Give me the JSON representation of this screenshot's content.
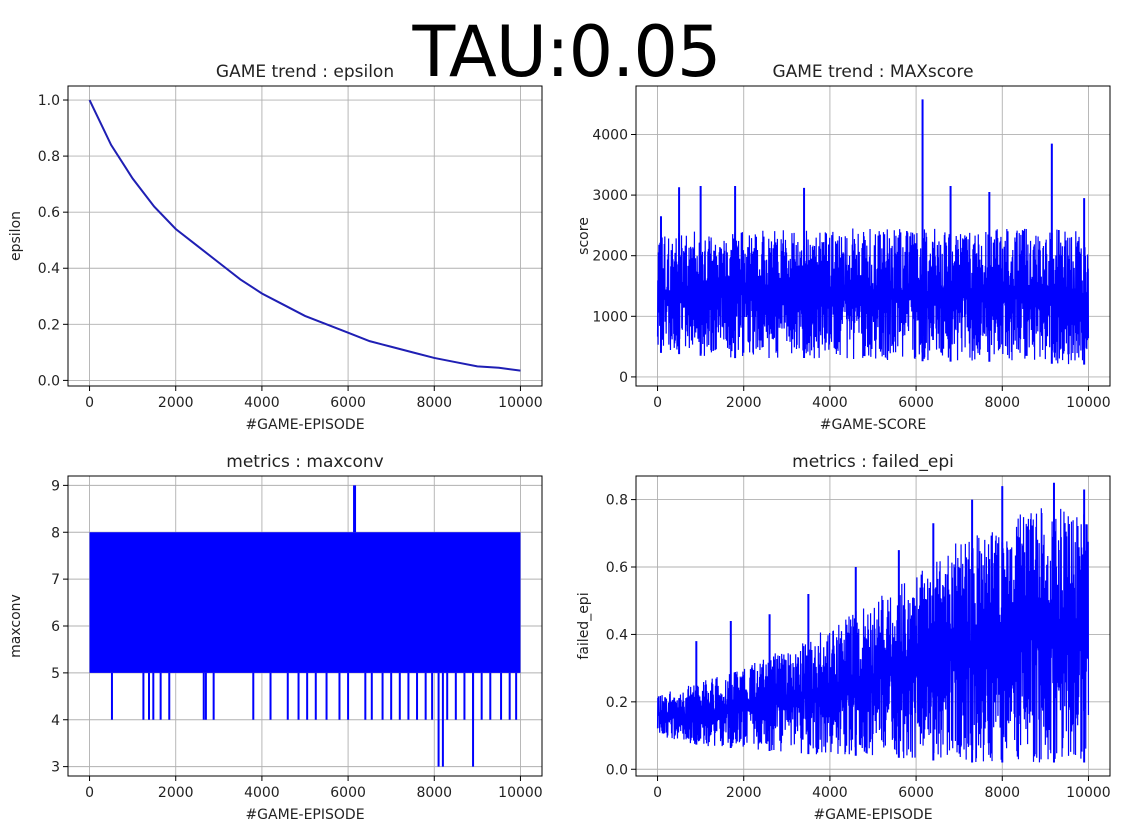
{
  "suptitle": "TAU:0.05",
  "colors": {
    "series": "#0000ff",
    "smooth": "#1f1fb4",
    "grid": "#b0b0b0",
    "axis": "#000000"
  },
  "chart_data": [
    {
      "id": "epsilon",
      "type": "line",
      "title": "GAME trend : epsilon",
      "xlabel": "#GAME-EPISODE",
      "ylabel": "epsilon",
      "xlim": [
        -500,
        10500
      ],
      "ylim": [
        -0.02,
        1.05
      ],
      "xticks": [
        0,
        2000,
        4000,
        6000,
        8000,
        10000
      ],
      "yticks": [
        0.0,
        0.2,
        0.4,
        0.6,
        0.8,
        1.0
      ],
      "ytick_labels": [
        "0.0",
        "0.2",
        "0.4",
        "0.6",
        "0.8",
        "1.0"
      ],
      "grid": true,
      "x": [
        0,
        500,
        1000,
        1500,
        2000,
        2500,
        3000,
        3500,
        4000,
        4500,
        5000,
        5500,
        6000,
        6500,
        7000,
        7500,
        8000,
        8500,
        9000,
        9500,
        10000
      ],
      "y": [
        1.0,
        0.84,
        0.72,
        0.62,
        0.54,
        0.48,
        0.42,
        0.36,
        0.31,
        0.27,
        0.23,
        0.2,
        0.17,
        0.14,
        0.12,
        0.1,
        0.08,
        0.065,
        0.05,
        0.045,
        0.035
      ]
    },
    {
      "id": "maxscore",
      "type": "line",
      "title": "GAME trend : MAXscore",
      "xlabel": "#GAME-SCORE",
      "ylabel": "score",
      "xlim": [
        -500,
        10500
      ],
      "ylim": [
        -150,
        4800
      ],
      "xticks": [
        0,
        2000,
        4000,
        6000,
        8000,
        10000
      ],
      "yticks": [
        0,
        1000,
        2000,
        3000,
        4000
      ],
      "ytick_labels": [
        "0",
        "1000",
        "2000",
        "3000",
        "4000"
      ],
      "grid": true,
      "envelope_x": [
        0,
        1000,
        2000,
        3000,
        4000,
        5000,
        6000,
        7000,
        8000,
        9000,
        10000
      ],
      "envelope_low": [
        400,
        350,
        300,
        320,
        300,
        280,
        260,
        250,
        250,
        220,
        200
      ],
      "envelope_high": [
        2300,
        2450,
        2400,
        2450,
        2450,
        2450,
        2450,
        2450,
        2450,
        2450,
        2400
      ],
      "peaks": [
        [
          80,
          2650
        ],
        [
          500,
          3130
        ],
        [
          1000,
          3150
        ],
        [
          1800,
          3150
        ],
        [
          3400,
          3120
        ],
        [
          6150,
          4580
        ],
        [
          6800,
          3150
        ],
        [
          7700,
          3050
        ],
        [
          9150,
          3850
        ],
        [
          9900,
          2950
        ]
      ]
    },
    {
      "id": "maxconv",
      "type": "line",
      "title": "metrics : maxconv",
      "xlabel": "#GAME-EPISODE",
      "ylabel": "maxconv",
      "xlim": [
        -500,
        10500
      ],
      "ylim": [
        2.8,
        9.2
      ],
      "xticks": [
        0,
        2000,
        4000,
        6000,
        8000,
        10000
      ],
      "yticks": [
        3,
        4,
        5,
        6,
        7,
        8,
        9
      ],
      "ytick_labels": [
        "3",
        "4",
        "5",
        "6",
        "7",
        "8",
        "9"
      ],
      "grid": true,
      "band": [
        5,
        8
      ],
      "drops_to_4": [
        520,
        1250,
        1380,
        1480,
        1650,
        1850,
        2650,
        2700,
        2880,
        3800,
        4200,
        4600,
        4850,
        5050,
        5250,
        5500,
        5800,
        6000,
        6400,
        6550,
        6800,
        7000,
        7200,
        7400,
        7600,
        7800,
        7950,
        8300,
        8500,
        8700,
        8900,
        9100,
        9300,
        9550,
        9750,
        9900
      ],
      "drops_to_3": [
        8100,
        8200,
        8900
      ],
      "spike_9": [
        6150
      ]
    },
    {
      "id": "failed_epi",
      "type": "line",
      "title": "metrics : failed_epi",
      "xlabel": "#GAME-EPISODE",
      "ylabel": "failed_epi",
      "xlim": [
        -500,
        10500
      ],
      "ylim": [
        -0.02,
        0.87
      ],
      "xticks": [
        0,
        2000,
        4000,
        6000,
        8000,
        10000
      ],
      "yticks": [
        0.0,
        0.2,
        0.4,
        0.6,
        0.8
      ],
      "ytick_labels": [
        "0.0",
        "0.2",
        "0.4",
        "0.6",
        "0.8"
      ],
      "grid": true,
      "envelope_x": [
        0,
        1000,
        2000,
        3000,
        4000,
        5000,
        6000,
        7000,
        8000,
        9000,
        10000
      ],
      "envelope_low": [
        0.1,
        0.07,
        0.06,
        0.05,
        0.04,
        0.04,
        0.03,
        0.02,
        0.02,
        0.02,
        0.02
      ],
      "envelope_high": [
        0.22,
        0.26,
        0.3,
        0.36,
        0.42,
        0.5,
        0.58,
        0.68,
        0.74,
        0.78,
        0.78
      ],
      "peaks": [
        [
          900,
          0.38
        ],
        [
          1700,
          0.44
        ],
        [
          2600,
          0.46
        ],
        [
          3500,
          0.52
        ],
        [
          4600,
          0.6
        ],
        [
          5600,
          0.65
        ],
        [
          6400,
          0.73
        ],
        [
          7300,
          0.8
        ],
        [
          8000,
          0.84
        ],
        [
          9200,
          0.85
        ],
        [
          9900,
          0.83
        ]
      ]
    }
  ]
}
